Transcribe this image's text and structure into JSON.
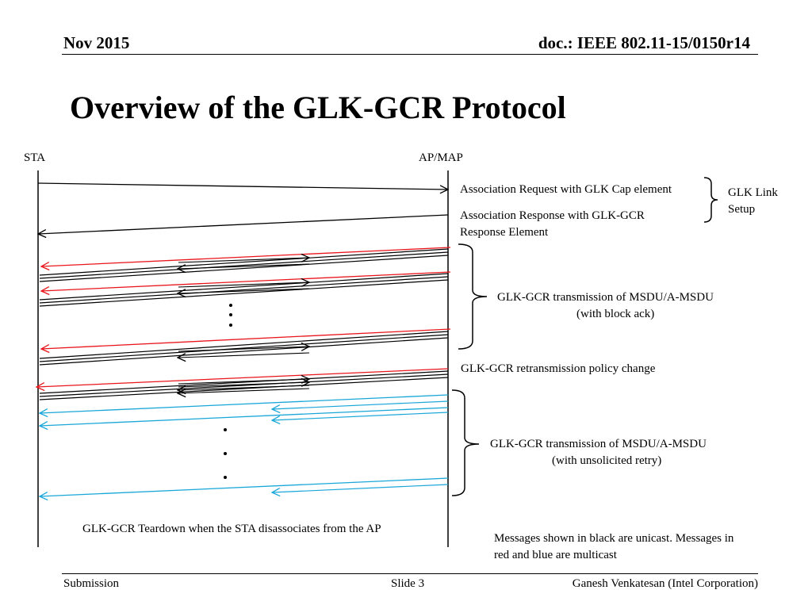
{
  "header": {
    "date": "Nov 2015",
    "doc": "doc.: IEEE 802.11-15/0150r14"
  },
  "slide": {
    "title": "Overview of the GLK-GCR Protocol"
  },
  "diagram": {
    "entities": {
      "left": "STA",
      "right": "AP/MAP"
    },
    "messages": {
      "assoc_request": "Association Request with GLK Cap element",
      "assoc_response_line1": "Association Response with GLK-GCR",
      "assoc_response_line2": "Response Element",
      "retransmission_policy_change": "GLK-GCR retransmission policy change",
      "teardown": "GLK-GCR Teardown when the STA disassociates from the AP"
    },
    "groups": {
      "link_setup_line1": "GLK Link",
      "link_setup_line2": "Setup",
      "block_ack_line1": "GLK-GCR transmission of MSDU/A-MSDU",
      "block_ack_line2": "(with block ack)",
      "unsolicited_line1": "GLK-GCR transmission of MSDU/A-MSDU",
      "unsolicited_line2": "(with unsolicited retry)"
    },
    "note_line1": "Messages shown in black are unicast. Messages in",
    "note_line2": "red and blue are multicast",
    "colors": {
      "unicast": "#000000",
      "multicast_red": "#e8151b",
      "multicast_blue": "#19a6d8"
    }
  },
  "footer": {
    "left": "Submission",
    "center": "Slide 3",
    "right": "Ganesh Venkatesan (Intel Corporation)"
  }
}
